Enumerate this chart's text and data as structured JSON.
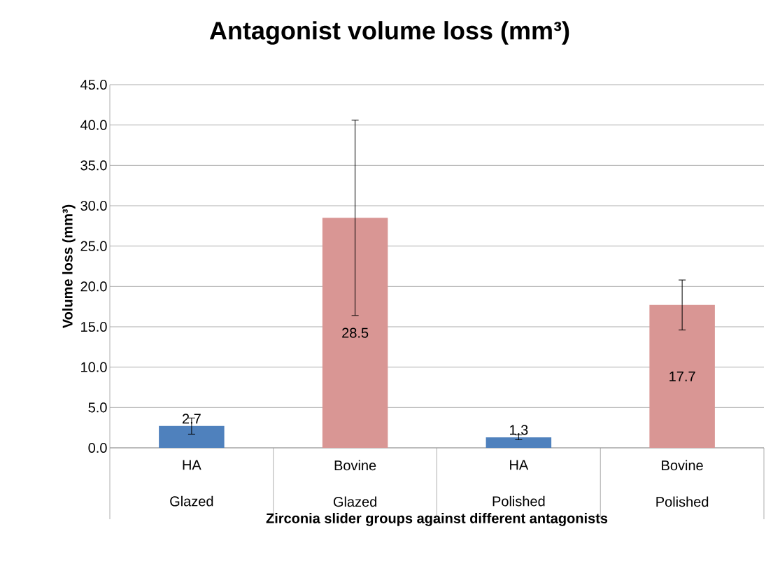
{
  "chart_data": {
    "type": "bar",
    "title": "Antagonist volume loss (mm³)",
    "xlabel": "Zirconia slider groups against different antagonists",
    "ylabel": "Volume loss (mm³)",
    "categories": [
      "HA Glazed",
      "Bovine Glazed",
      "HA Polished",
      "Bovine Polished"
    ],
    "values": [
      2.7,
      28.5,
      1.3,
      17.7
    ],
    "errors": [
      1.0,
      12.1,
      0.3,
      3.1
    ],
    "colors": [
      "#4f81bd",
      "#d99694",
      "#4f81bd",
      "#d99694"
    ],
    "data_labels": true,
    "grid": "y",
    "ylim": [
      0,
      45
    ],
    "yticks": [
      {
        "value": 0,
        "label": "0.0"
      },
      {
        "value": 5,
        "label": "5.0"
      },
      {
        "value": 10,
        "label": "10.0"
      },
      {
        "value": 15,
        "label": "15.0"
      },
      {
        "value": 20,
        "label": "20.0"
      },
      {
        "value": 25,
        "label": "25.0"
      },
      {
        "value": 30,
        "label": "30.0"
      },
      {
        "value": 35,
        "label": "35.0"
      },
      {
        "value": 40,
        "label": "40.0"
      },
      {
        "value": 45,
        "label": "45.0"
      }
    ]
  }
}
